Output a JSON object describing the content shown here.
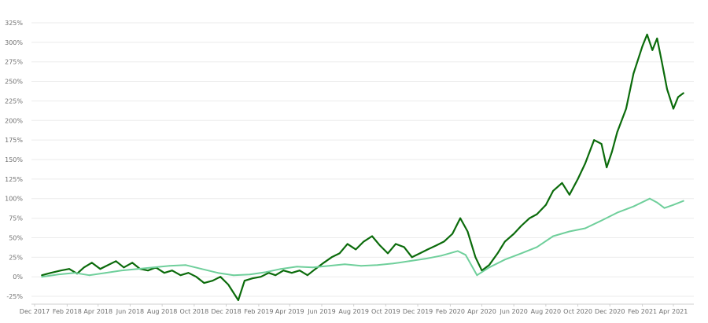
{
  "chart_data": {
    "type": "line",
    "title": "",
    "xlabel": "",
    "ylabel": "",
    "ylim": [
      -0.35,
      3.3
    ],
    "xlim": [
      "2017-11-25",
      "2021-05-10"
    ],
    "grid": {
      "horizontal": true,
      "vertical": false
    },
    "y_ticks": [
      {
        "value": -0.25,
        "label": "-25%"
      },
      {
        "value": 0.0,
        "label": "0%"
      },
      {
        "value": 0.25,
        "label": "25%"
      },
      {
        "value": 0.5,
        "label": "50%"
      },
      {
        "value": 0.75,
        "label": "75%"
      },
      {
        "value": 1.0,
        "label": "100%"
      },
      {
        "value": 1.25,
        "label": "125%"
      },
      {
        "value": 1.5,
        "label": "150%"
      },
      {
        "value": 1.75,
        "label": "175%"
      },
      {
        "value": 2.0,
        "label": "200%"
      },
      {
        "value": 2.25,
        "label": "225%"
      },
      {
        "value": 2.5,
        "label": "250%"
      },
      {
        "value": 2.75,
        "label": "275%"
      },
      {
        "value": 3.0,
        "label": "300%"
      },
      {
        "value": 3.25,
        "label": "325%"
      }
    ],
    "x_ticks": [
      {
        "value": "2017-12-01",
        "label": "Dec 2017"
      },
      {
        "value": "2018-02-01",
        "label": "Feb 2018"
      },
      {
        "value": "2018-04-01",
        "label": "Apr 2018"
      },
      {
        "value": "2018-06-01",
        "label": "Jun 2018"
      },
      {
        "value": "2018-08-01",
        "label": "Aug 2018"
      },
      {
        "value": "2018-10-01",
        "label": "Oct 2018"
      },
      {
        "value": "2018-12-01",
        "label": "Dec 2018"
      },
      {
        "value": "2019-02-01",
        "label": "Feb 2019"
      },
      {
        "value": "2019-04-01",
        "label": "Apr 2019"
      },
      {
        "value": "2019-06-01",
        "label": "Jun 2019"
      },
      {
        "value": "2019-08-01",
        "label": "Aug 2019"
      },
      {
        "value": "2019-10-01",
        "label": "Oct 2019"
      },
      {
        "value": "2019-12-01",
        "label": "Dec 2019"
      },
      {
        "value": "2020-02-01",
        "label": "Feb 2020"
      },
      {
        "value": "2020-04-01",
        "label": "Apr 2020"
      },
      {
        "value": "2020-06-01",
        "label": "Jun 2020"
      },
      {
        "value": "2020-08-01",
        "label": "Aug 2020"
      },
      {
        "value": "2020-10-01",
        "label": "Oct 2020"
      },
      {
        "value": "2020-12-01",
        "label": "Dec 2020"
      },
      {
        "value": "2021-02-01",
        "label": "Feb 2021"
      },
      {
        "value": "2021-04-01",
        "label": "Apr 2021"
      }
    ],
    "series": [
      {
        "color": "#0b6b0b",
        "line_width": 2.2,
        "points": [
          [
            "2017-12-15",
            0.02
          ],
          [
            "2018-01-01",
            0.05
          ],
          [
            "2018-01-20",
            0.08
          ],
          [
            "2018-02-05",
            0.1
          ],
          [
            "2018-02-20",
            0.04
          ],
          [
            "2018-03-05",
            0.12
          ],
          [
            "2018-03-20",
            0.18
          ],
          [
            "2018-04-05",
            0.1
          ],
          [
            "2018-04-20",
            0.15
          ],
          [
            "2018-05-05",
            0.2
          ],
          [
            "2018-05-20",
            0.12
          ],
          [
            "2018-06-05",
            0.18
          ],
          [
            "2018-06-20",
            0.1
          ],
          [
            "2018-07-05",
            0.08
          ],
          [
            "2018-07-20",
            0.12
          ],
          [
            "2018-08-05",
            0.05
          ],
          [
            "2018-08-20",
            0.08
          ],
          [
            "2018-09-05",
            0.02
          ],
          [
            "2018-09-20",
            0.05
          ],
          [
            "2018-10-05",
            0.0
          ],
          [
            "2018-10-20",
            -0.08
          ],
          [
            "2018-11-05",
            -0.05
          ],
          [
            "2018-11-20",
            0.0
          ],
          [
            "2018-12-05",
            -0.1
          ],
          [
            "2018-12-24",
            -0.3
          ],
          [
            "2019-01-05",
            -0.05
          ],
          [
            "2019-01-20",
            -0.02
          ],
          [
            "2019-02-05",
            0.0
          ],
          [
            "2019-02-20",
            0.05
          ],
          [
            "2019-03-05",
            0.02
          ],
          [
            "2019-03-20",
            0.08
          ],
          [
            "2019-04-05",
            0.05
          ],
          [
            "2019-04-20",
            0.08
          ],
          [
            "2019-05-05",
            0.02
          ],
          [
            "2019-05-20",
            0.1
          ],
          [
            "2019-06-05",
            0.18
          ],
          [
            "2019-06-20",
            0.25
          ],
          [
            "2019-07-05",
            0.3
          ],
          [
            "2019-07-20",
            0.42
          ],
          [
            "2019-08-05",
            0.35
          ],
          [
            "2019-08-20",
            0.45
          ],
          [
            "2019-09-05",
            0.52
          ],
          [
            "2019-09-20",
            0.4
          ],
          [
            "2019-10-05",
            0.3
          ],
          [
            "2019-10-20",
            0.42
          ],
          [
            "2019-11-05",
            0.38
          ],
          [
            "2019-11-20",
            0.25
          ],
          [
            "2019-12-05",
            0.3
          ],
          [
            "2019-12-20",
            0.35
          ],
          [
            "2020-01-05",
            0.4
          ],
          [
            "2020-01-20",
            0.45
          ],
          [
            "2020-02-05",
            0.55
          ],
          [
            "2020-02-20",
            0.75
          ],
          [
            "2020-03-05",
            0.58
          ],
          [
            "2020-03-20",
            0.25
          ],
          [
            "2020-04-01",
            0.08
          ],
          [
            "2020-04-15",
            0.15
          ],
          [
            "2020-05-01",
            0.3
          ],
          [
            "2020-05-15",
            0.45
          ],
          [
            "2020-06-01",
            0.55
          ],
          [
            "2020-06-15",
            0.65
          ],
          [
            "2020-07-01",
            0.75
          ],
          [
            "2020-07-15",
            0.8
          ],
          [
            "2020-08-01",
            0.92
          ],
          [
            "2020-08-15",
            1.1
          ],
          [
            "2020-09-01",
            1.2
          ],
          [
            "2020-09-15",
            1.05
          ],
          [
            "2020-10-01",
            1.25
          ],
          [
            "2020-10-15",
            1.45
          ],
          [
            "2020-11-01",
            1.75
          ],
          [
            "2020-11-15",
            1.7
          ],
          [
            "2020-11-25",
            1.4
          ],
          [
            "2020-12-05",
            1.6
          ],
          [
            "2020-12-15",
            1.85
          ],
          [
            "2021-01-01",
            2.15
          ],
          [
            "2021-01-15",
            2.6
          ],
          [
            "2021-02-01",
            2.95
          ],
          [
            "2021-02-10",
            3.1
          ],
          [
            "2021-02-20",
            2.9
          ],
          [
            "2021-03-01",
            3.05
          ],
          [
            "2021-03-10",
            2.75
          ],
          [
            "2021-03-20",
            2.4
          ],
          [
            "2021-04-01",
            2.15
          ],
          [
            "2021-04-10",
            2.3
          ],
          [
            "2021-04-20",
            2.35
          ]
        ]
      },
      {
        "color": "#6fcf9b",
        "line_width": 2.0,
        "points": [
          [
            "2017-12-15",
            0.0
          ],
          [
            "2018-01-15",
            0.03
          ],
          [
            "2018-02-15",
            0.05
          ],
          [
            "2018-03-15",
            0.02
          ],
          [
            "2018-04-15",
            0.05
          ],
          [
            "2018-05-15",
            0.08
          ],
          [
            "2018-06-15",
            0.1
          ],
          [
            "2018-07-15",
            0.12
          ],
          [
            "2018-08-15",
            0.14
          ],
          [
            "2018-09-15",
            0.15
          ],
          [
            "2018-10-15",
            0.1
          ],
          [
            "2018-11-15",
            0.05
          ],
          [
            "2018-12-15",
            0.02
          ],
          [
            "2019-01-15",
            0.03
          ],
          [
            "2019-02-15",
            0.06
          ],
          [
            "2019-03-15",
            0.1
          ],
          [
            "2019-04-15",
            0.13
          ],
          [
            "2019-05-15",
            0.12
          ],
          [
            "2019-06-15",
            0.14
          ],
          [
            "2019-07-15",
            0.16
          ],
          [
            "2019-08-15",
            0.14
          ],
          [
            "2019-09-15",
            0.15
          ],
          [
            "2019-10-15",
            0.17
          ],
          [
            "2019-11-15",
            0.2
          ],
          [
            "2019-12-15",
            0.23
          ],
          [
            "2020-01-15",
            0.27
          ],
          [
            "2020-02-15",
            0.33
          ],
          [
            "2020-03-01",
            0.28
          ],
          [
            "2020-03-23",
            0.02
          ],
          [
            "2020-04-15",
            0.12
          ],
          [
            "2020-05-15",
            0.22
          ],
          [
            "2020-06-15",
            0.3
          ],
          [
            "2020-07-15",
            0.38
          ],
          [
            "2020-08-15",
            0.52
          ],
          [
            "2020-09-15",
            0.58
          ],
          [
            "2020-10-15",
            0.62
          ],
          [
            "2020-11-15",
            0.72
          ],
          [
            "2020-12-15",
            0.82
          ],
          [
            "2021-01-15",
            0.9
          ],
          [
            "2021-02-15",
            1.0
          ],
          [
            "2021-03-01",
            0.95
          ],
          [
            "2021-03-15",
            0.88
          ],
          [
            "2021-04-01",
            0.92
          ],
          [
            "2021-04-20",
            0.97
          ]
        ]
      }
    ]
  }
}
